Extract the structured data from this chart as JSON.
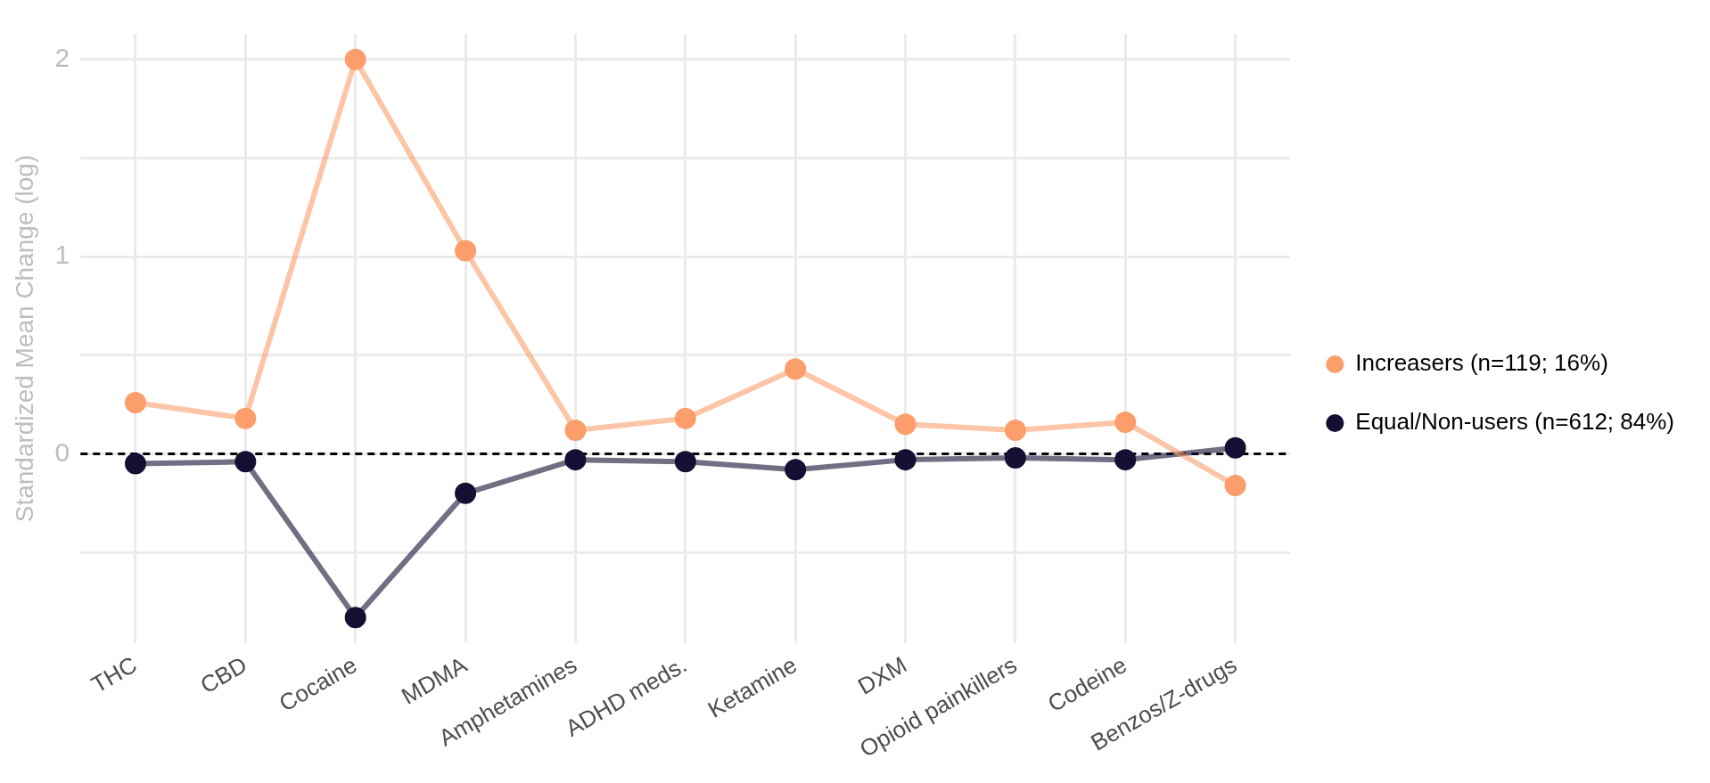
{
  "chart_data": {
    "type": "line",
    "ylabel": "Standardized Mean Change (log)",
    "categories": [
      "THC",
      "CBD",
      "Cocaine",
      "MDMA",
      "Amphetamines",
      "ADHD meds.",
      "Ketamine",
      "DXM",
      "Opioid painkillers",
      "Codeine",
      "Benzos/Z-drugs"
    ],
    "series": [
      {
        "name": "Increasers (n=119; 16%)",
        "color": "#fc9e6c",
        "values": [
          0.26,
          0.18,
          2.0,
          1.03,
          0.12,
          0.18,
          0.43,
          0.15,
          0.12,
          0.16,
          -0.16
        ]
      },
      {
        "name": "Equal/Non-users (n=612; 84%)",
        "color": "#140f33",
        "values": [
          -0.05,
          -0.04,
          -0.83,
          -0.2,
          -0.03,
          -0.04,
          -0.08,
          -0.03,
          -0.02,
          -0.03,
          0.03
        ]
      }
    ],
    "ylim": [
      -0.96,
      2.13
    ],
    "yticks": [
      {
        "value": -0.5,
        "label": null
      },
      0,
      {
        "value": 0.5,
        "label": null
      },
      1,
      {
        "value": 1.5,
        "label": null
      },
      2
    ],
    "ref_lines": [
      {
        "axis": "y",
        "value": 0,
        "color": "#000000",
        "line_style": "dashed"
      }
    ],
    "grid": true,
    "legend": "right",
    "marker": "circle",
    "line_style": "solid"
  }
}
